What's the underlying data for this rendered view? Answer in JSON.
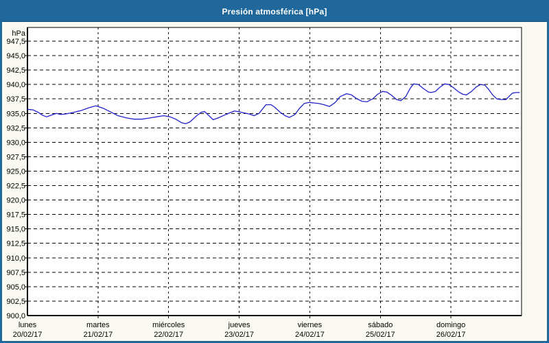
{
  "window": {
    "title": "Presión atmosférica [hPa]"
  },
  "colors": {
    "titlebar": "#20689C",
    "window_bg": "#FAFAF2",
    "plot_bg": "#FFFFFF",
    "grid": "#000000",
    "frame": "#000000",
    "line": "#2222CC",
    "title_text": "#FFFFFF",
    "label_text": "#000000"
  },
  "chart_data": {
    "type": "line",
    "title": "Presión atmosférica [hPa]",
    "unit_label": "hPa",
    "grid": "dashed",
    "legend": "none",
    "y_axis": {
      "min": 900,
      "max_gridline": 947.5,
      "step": 2.5,
      "tick_labels": [
        "947,5",
        "945,0",
        "942,5",
        "940,0",
        "937,5",
        "935,0",
        "932,5",
        "930,0",
        "927,5",
        "925,0",
        "922,5",
        "920,0",
        "917,5",
        "915,0",
        "912,5",
        "910,0",
        "907,5",
        "905,0",
        "902,5",
        "900,0"
      ]
    },
    "x_axis": {
      "days": [
        {
          "name": "lunes",
          "date": "20/02/17"
        },
        {
          "name": "martes",
          "date": "21/02/17"
        },
        {
          "name": "miércoles",
          "date": "22/02/17"
        },
        {
          "name": "jueves",
          "date": "23/02/17"
        },
        {
          "name": "viernes",
          "date": "24/02/17"
        },
        {
          "name": "sábado",
          "date": "25/02/17"
        },
        {
          "name": "domingo",
          "date": "26/02/17"
        }
      ]
    },
    "series": [
      {
        "name": "Presión atmosférica",
        "color": "#2222CC",
        "x_unit": "days_from_monday_00h",
        "points": [
          [
            0.0,
            935.7
          ],
          [
            0.08,
            935.6
          ],
          [
            0.15,
            935.2
          ],
          [
            0.21,
            934.7
          ],
          [
            0.27,
            934.4
          ],
          [
            0.34,
            934.7
          ],
          [
            0.41,
            935.0
          ],
          [
            0.47,
            934.8
          ],
          [
            0.54,
            934.9
          ],
          [
            0.63,
            935.1
          ],
          [
            0.76,
            935.5
          ],
          [
            0.88,
            936.0
          ],
          [
            0.97,
            936.3
          ],
          [
            1.07,
            935.9
          ],
          [
            1.17,
            935.3
          ],
          [
            1.28,
            934.6
          ],
          [
            1.41,
            934.2
          ],
          [
            1.51,
            934.0
          ],
          [
            1.62,
            934.0
          ],
          [
            1.73,
            934.2
          ],
          [
            1.83,
            934.4
          ],
          [
            1.93,
            934.6
          ],
          [
            2.02,
            934.4
          ],
          [
            2.1,
            934.0
          ],
          [
            2.18,
            933.4
          ],
          [
            2.24,
            933.2
          ],
          [
            2.3,
            933.5
          ],
          [
            2.38,
            934.4
          ],
          [
            2.46,
            935.2
          ],
          [
            2.51,
            935.3
          ],
          [
            2.58,
            934.5
          ],
          [
            2.63,
            933.9
          ],
          [
            2.7,
            934.2
          ],
          [
            2.79,
            934.7
          ],
          [
            2.87,
            935.1
          ],
          [
            2.93,
            935.4
          ],
          [
            2.99,
            935.3
          ],
          [
            3.06,
            935.1
          ],
          [
            3.14,
            934.9
          ],
          [
            3.21,
            934.6
          ],
          [
            3.28,
            935.0
          ],
          [
            3.34,
            935.9
          ],
          [
            3.38,
            936.5
          ],
          [
            3.45,
            936.5
          ],
          [
            3.5,
            936.1
          ],
          [
            3.58,
            935.2
          ],
          [
            3.65,
            934.6
          ],
          [
            3.71,
            934.3
          ],
          [
            3.79,
            934.8
          ],
          [
            3.85,
            935.8
          ],
          [
            3.92,
            936.7
          ],
          [
            3.99,
            936.9
          ],
          [
            4.06,
            936.8
          ],
          [
            4.13,
            936.7
          ],
          [
            4.2,
            936.5
          ],
          [
            4.28,
            936.2
          ],
          [
            4.36,
            936.9
          ],
          [
            4.43,
            937.9
          ],
          [
            4.52,
            938.4
          ],
          [
            4.59,
            938.2
          ],
          [
            4.67,
            937.5
          ],
          [
            4.74,
            937.1
          ],
          [
            4.81,
            937.0
          ],
          [
            4.89,
            937.5
          ],
          [
            4.96,
            938.3
          ],
          [
            5.03,
            938.8
          ],
          [
            5.09,
            938.7
          ],
          [
            5.15,
            938.2
          ],
          [
            5.23,
            937.4
          ],
          [
            5.29,
            937.2
          ],
          [
            5.36,
            937.9
          ],
          [
            5.42,
            939.3
          ],
          [
            5.47,
            940.1
          ],
          [
            5.54,
            940.0
          ],
          [
            5.61,
            939.3
          ],
          [
            5.68,
            938.7
          ],
          [
            5.72,
            938.6
          ],
          [
            5.78,
            938.8
          ],
          [
            5.84,
            939.5
          ],
          [
            5.91,
            940.1
          ],
          [
            5.97,
            940.0
          ],
          [
            6.04,
            939.4
          ],
          [
            6.11,
            938.7
          ],
          [
            6.17,
            938.3
          ],
          [
            6.22,
            938.2
          ],
          [
            6.29,
            938.8
          ],
          [
            6.36,
            939.6
          ],
          [
            6.42,
            940.0
          ],
          [
            6.48,
            939.9
          ],
          [
            6.53,
            939.2
          ],
          [
            6.59,
            938.2
          ],
          [
            6.65,
            937.5
          ],
          [
            6.71,
            937.4
          ],
          [
            6.78,
            937.4
          ],
          [
            6.82,
            937.9
          ],
          [
            6.87,
            938.5
          ],
          [
            6.92,
            938.6
          ],
          [
            6.97,
            938.6
          ]
        ]
      }
    ]
  }
}
